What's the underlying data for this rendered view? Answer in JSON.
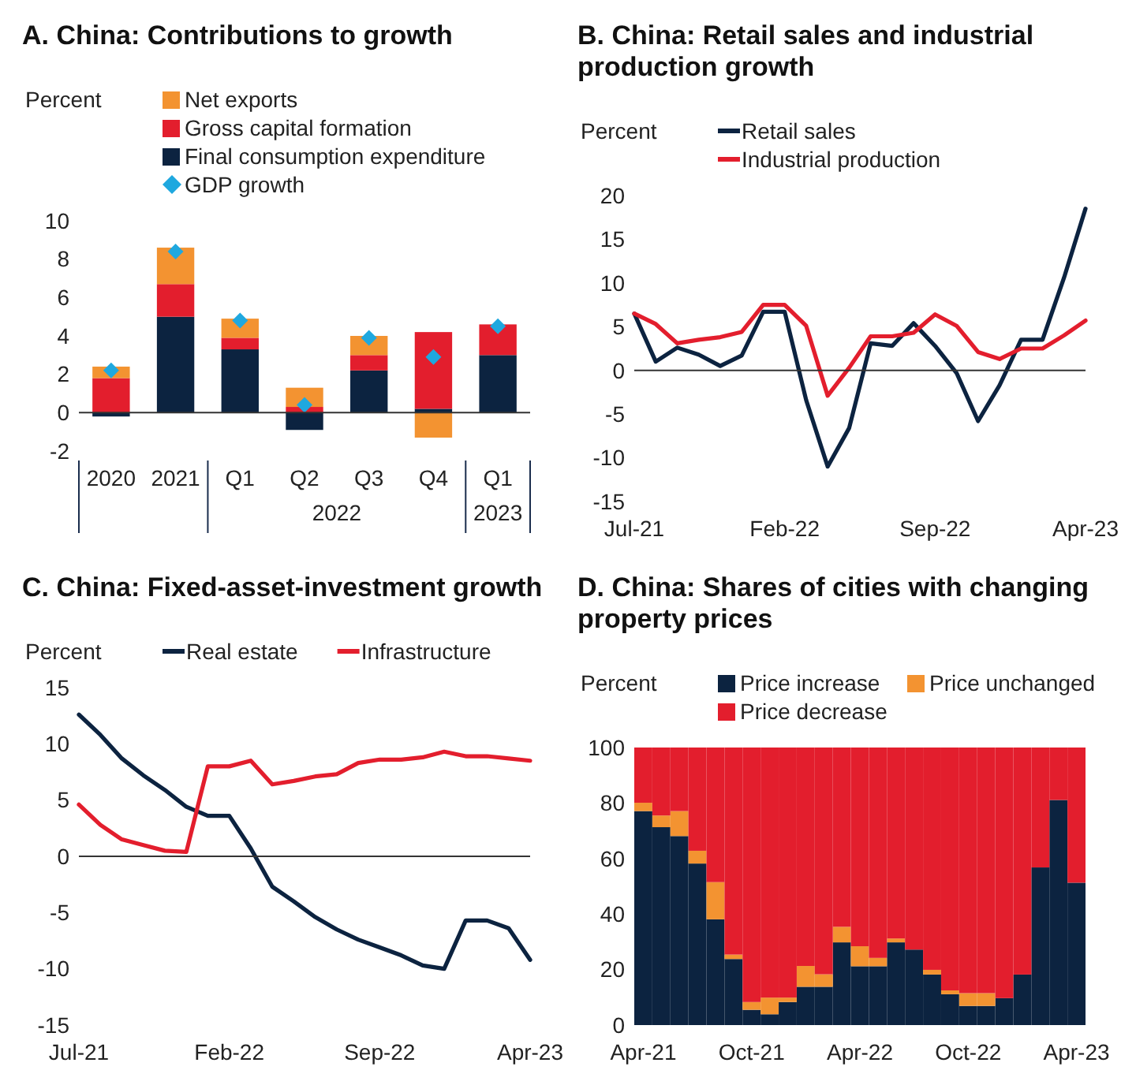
{
  "chart_data": [
    {
      "type": "bar",
      "title": "A. China: Contributions to growth",
      "ylabel": "Percent",
      "categories": [
        "2020",
        "2021",
        "Q1",
        "Q2",
        "Q3",
        "Q4",
        "Q1"
      ],
      "stacked": true,
      "ylim": [
        -2,
        10
      ],
      "yticks": [
        -2,
        0,
        2,
        4,
        6,
        8,
        10
      ],
      "legend": "top",
      "annotations": [
        "2022",
        "2023"
      ],
      "series": [
        {
          "name": "Final consumption expenditure",
          "color": "#0c2340",
          "values": [
            -0.2,
            5.0,
            3.3,
            -0.9,
            2.2,
            0.2,
            3.0
          ]
        },
        {
          "name": "Gross capital formation",
          "color": "#e31e2d",
          "values": [
            1.8,
            1.7,
            0.6,
            0.3,
            0.8,
            4.0,
            1.6
          ]
        },
        {
          "name": "Net exports",
          "color": "#f39331",
          "values": [
            0.6,
            1.9,
            1.0,
            1.0,
            1.0,
            -1.3,
            0
          ]
        },
        {
          "name": "GDP growth",
          "type": "scatter",
          "marker": "diamond",
          "color": "#1fa8df",
          "values": [
            2.2,
            8.4,
            4.8,
            0.4,
            3.9,
            2.9,
            4.5
          ]
        }
      ]
    },
    {
      "type": "line",
      "title": "B. China: Retail sales and industrial production growth",
      "ylabel": "Percent",
      "categories": [
        "Jul-21",
        null,
        null,
        null,
        null,
        null,
        null,
        "Feb-22",
        null,
        null,
        null,
        null,
        null,
        null,
        "Sep-22",
        null,
        null,
        null,
        null,
        null,
        null,
        "Apr-23"
      ],
      "ylim": [
        -15,
        20
      ],
      "yticks": [
        -15,
        -10,
        -5,
        0,
        5,
        10,
        15,
        20
      ],
      "legend": "top",
      "line_style": "solid",
      "series": [
        {
          "name": "Retail sales",
          "color": "#0c2340",
          "values": [
            6.5,
            1.0,
            2.6,
            1.8,
            0.5,
            1.7,
            6.7,
            6.7,
            -3.4,
            -11.0,
            -6.6,
            3.1,
            2.8,
            5.4,
            2.8,
            -0.3,
            -5.8,
            -1.7,
            3.5,
            3.5,
            10.6,
            18.5
          ]
        },
        {
          "name": "Industrial production",
          "color": "#e31e2d",
          "values": [
            6.5,
            5.3,
            3.1,
            3.5,
            3.8,
            4.4,
            7.5,
            7.5,
            5.1,
            -2.9,
            0.3,
            3.9,
            3.9,
            4.3,
            6.4,
            5.1,
            2.1,
            1.3,
            2.5,
            2.5,
            4.0,
            5.7
          ]
        }
      ]
    },
    {
      "type": "line",
      "title": "C. China: Fixed-asset-investment growth",
      "ylabel": "Percent",
      "categories": [
        "Jul-21",
        null,
        null,
        null,
        null,
        null,
        null,
        "Feb-22",
        null,
        null,
        null,
        null,
        null,
        null,
        "Sep-22",
        null,
        null,
        null,
        null,
        null,
        null,
        "Apr-23"
      ],
      "ylim": [
        -15,
        15
      ],
      "yticks": [
        -15,
        -10,
        -5,
        0,
        5,
        10,
        15
      ],
      "legend": "top",
      "line_style": "solid",
      "series": [
        {
          "name": "Real estate",
          "color": "#0c2340",
          "values": [
            12.6,
            10.8,
            8.7,
            7.2,
            5.9,
            4.4,
            3.6,
            3.6,
            0.7,
            -2.7,
            -4.0,
            -5.4,
            -6.5,
            -7.4,
            -8.1,
            -8.8,
            -9.7,
            -10.0,
            -5.7,
            -5.7,
            -6.4,
            -9.2
          ]
        },
        {
          "name": "Infrastructure",
          "color": "#e31e2d",
          "values": [
            4.6,
            2.8,
            1.5,
            1.0,
            0.5,
            0.4,
            8.0,
            8.0,
            8.5,
            6.4,
            6.7,
            7.1,
            7.3,
            8.3,
            8.6,
            8.6,
            8.8,
            9.3,
            8.9,
            8.9,
            8.7,
            8.5
          ]
        }
      ]
    },
    {
      "type": "bar",
      "title": "D. China: Shares of cities with changing property prices",
      "ylabel": "Percent",
      "categories": [
        "Apr-21",
        null,
        null,
        null,
        null,
        null,
        "Oct-21",
        null,
        null,
        null,
        null,
        null,
        "Apr-22",
        null,
        null,
        null,
        null,
        null,
        "Oct-22",
        null,
        null,
        null,
        null,
        null,
        "Apr-23"
      ],
      "stacked": true,
      "ylim": [
        0,
        100
      ],
      "yticks": [
        0,
        20,
        40,
        60,
        80,
        100
      ],
      "legend": "top",
      "series": [
        {
          "name": "Price increase",
          "color": "#0c2340",
          "values": [
            77.1,
            71.3,
            68.1,
            58.2,
            38.1,
            23.8,
            5.5,
            3.9,
            8.3,
            13.8,
            13.8,
            29.8,
            21.2,
            21.2,
            29.8,
            27.2,
            18.2,
            11.1,
            6.9,
            6.9,
            9.7,
            18.2,
            56.8,
            81.1,
            51.3
          ]
        },
        {
          "name": "Price unchanged",
          "color": "#f39331",
          "values": [
            3.0,
            4.2,
            9.0,
            4.6,
            13.4,
            1.6,
            2.8,
            6.0,
            1.6,
            7.5,
            4.5,
            5.6,
            7.2,
            3.0,
            1.4,
            0,
            1.7,
            1.4,
            4.6,
            4.6,
            0,
            0,
            0,
            0,
            0
          ]
        },
        {
          "name": "Price decrease",
          "color": "#e31e2d",
          "values": [
            19.9,
            24.5,
            22.9,
            37.2,
            48.5,
            74.6,
            91.7,
            90.1,
            90.1,
            78.7,
            81.7,
            64.6,
            71.6,
            75.8,
            68.8,
            72.8,
            80.1,
            87.5,
            88.5,
            88.5,
            90.3,
            81.8,
            43.2,
            18.9,
            48.7
          ]
        }
      ]
    }
  ]
}
